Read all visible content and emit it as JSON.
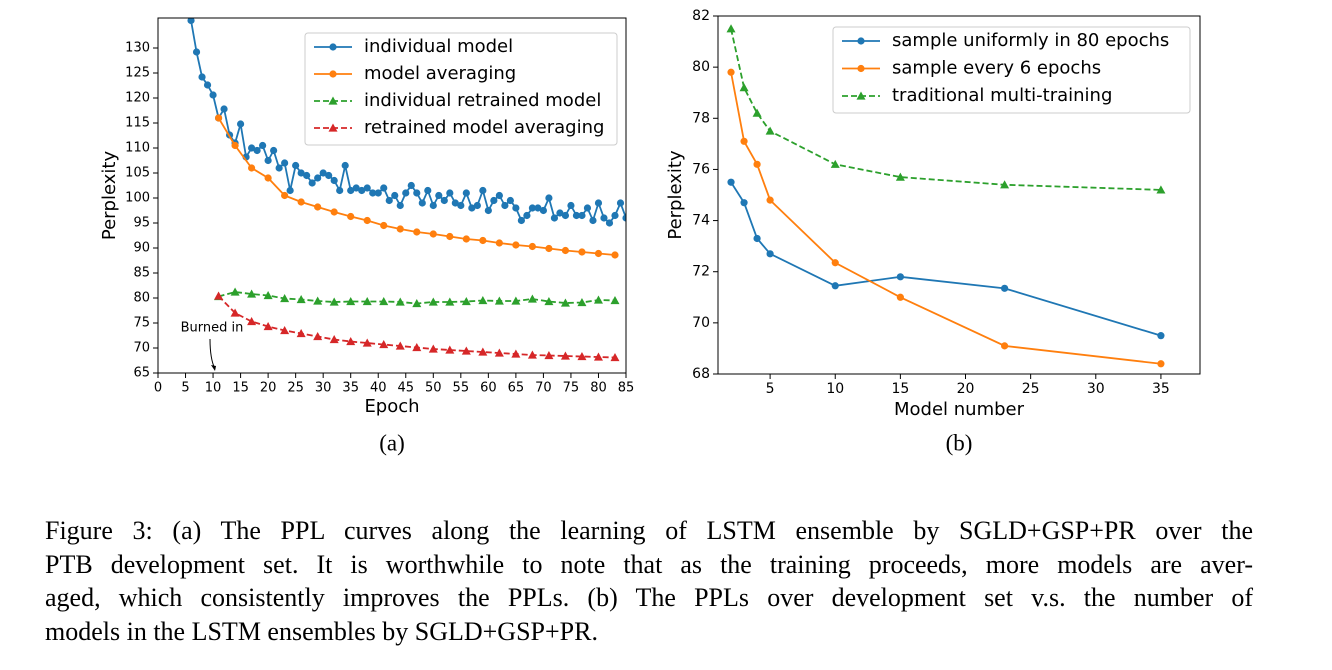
{
  "chart_data": [
    {
      "type": "line",
      "caption": "(a)",
      "xlabel": "Epoch",
      "ylabel": "Perplexity",
      "xlim": [
        0,
        85
      ],
      "ylim": [
        65,
        136
      ],
      "xticks": [
        0,
        5,
        10,
        15,
        20,
        25,
        30,
        35,
        40,
        45,
        50,
        55,
        60,
        65,
        70,
        75,
        80,
        85
      ],
      "yticks": [
        65,
        70,
        75,
        80,
        85,
        90,
        95,
        100,
        105,
        110,
        115,
        120,
        125,
        130
      ],
      "legend": "upper right",
      "annotation": "Burned in",
      "series": [
        {
          "name": "individual model",
          "color": "#1f77b4",
          "marker": "circle",
          "dashed": false,
          "x": [
            6,
            7,
            8,
            9,
            10,
            11,
            12,
            13,
            14,
            15,
            16,
            17,
            18,
            19,
            20,
            21,
            22,
            23,
            24,
            25,
            26,
            27,
            28,
            29,
            30,
            31,
            32,
            33,
            34,
            35,
            36,
            37,
            38,
            39,
            40,
            41,
            42,
            43,
            44,
            45,
            46,
            47,
            48,
            49,
            50,
            51,
            52,
            53,
            54,
            55,
            56,
            57,
            58,
            59,
            60,
            61,
            62,
            63,
            64,
            65,
            66,
            67,
            68,
            69,
            70,
            71,
            72,
            73,
            74,
            75,
            76,
            77,
            78,
            79,
            80,
            81,
            82,
            83,
            84,
            85
          ],
          "values": [
            135.5,
            129.2,
            124.2,
            122.6,
            120.6,
            116,
            117.8,
            112.6,
            111,
            114.8,
            108.2,
            110,
            109.5,
            110.5,
            107.5,
            109.5,
            106,
            107,
            101.5,
            106.5,
            105,
            104.5,
            103,
            104,
            105,
            104.5,
            103.5,
            101.5,
            106.5,
            101.5,
            102,
            101.5,
            102,
            101,
            101,
            102,
            99.5,
            100.5,
            98.5,
            101,
            102.5,
            101,
            99,
            101.5,
            98.5,
            100.5,
            99.5,
            101,
            99,
            98.5,
            101,
            98,
            98.5,
            101.5,
            97.5,
            99.5,
            100.5,
            98.5,
            99.5,
            98,
            95.5,
            96.5,
            98,
            98,
            97.5,
            100,
            96,
            97,
            96.5,
            98.5,
            96.5,
            96.5,
            98,
            95.5,
            99,
            96,
            95,
            96.5,
            99,
            96
          ]
        },
        {
          "name": "model averaging",
          "color": "#ff7f0e",
          "marker": "circle",
          "dashed": false,
          "x": [
            11,
            14,
            17,
            20,
            23,
            26,
            29,
            32,
            35,
            38,
            41,
            44,
            47,
            50,
            53,
            56,
            59,
            62,
            65,
            68,
            71,
            74,
            77,
            80,
            83
          ],
          "values": [
            116,
            110.5,
            106,
            104,
            100.5,
            99.2,
            98.2,
            97.2,
            96.3,
            95.5,
            94.5,
            93.8,
            93.2,
            92.8,
            92.3,
            91.8,
            91.5,
            91,
            90.6,
            90.3,
            89.9,
            89.5,
            89.2,
            88.9,
            88.6
          ]
        },
        {
          "name": "individual retrained model",
          "color": "#2ca02c",
          "marker": "triangle",
          "dashed": true,
          "x": [
            11,
            14,
            17,
            20,
            23,
            26,
            29,
            32,
            35,
            38,
            41,
            44,
            47,
            50,
            53,
            56,
            59,
            62,
            65,
            68,
            71,
            74,
            77,
            80,
            83
          ],
          "values": [
            80.3,
            81.2,
            80.8,
            80.5,
            79.9,
            79.7,
            79.4,
            79.2,
            79.3,
            79.3,
            79.3,
            79.2,
            78.9,
            79.2,
            79.2,
            79.3,
            79.5,
            79.4,
            79.4,
            79.8,
            79.3,
            79,
            79.1,
            79.6,
            79.5
          ]
        },
        {
          "name": "retrained model averaging",
          "color": "#d62728",
          "marker": "triangle",
          "dashed": true,
          "x": [
            11,
            14,
            17,
            20,
            23,
            26,
            29,
            32,
            35,
            38,
            41,
            44,
            47,
            50,
            53,
            56,
            59,
            62,
            65,
            68,
            71,
            74,
            77,
            80,
            83
          ],
          "values": [
            80.4,
            77,
            75.3,
            74.3,
            73.5,
            72.9,
            72.3,
            71.7,
            71.3,
            71,
            70.7,
            70.4,
            70.1,
            69.8,
            69.6,
            69.4,
            69.2,
            69,
            68.8,
            68.6,
            68.5,
            68.4,
            68.3,
            68.2,
            68.1
          ]
        }
      ]
    },
    {
      "type": "line",
      "caption": "(b)",
      "xlabel": "Model number",
      "ylabel": "Perplexity",
      "xlim": [
        1,
        38
      ],
      "ylim": [
        68,
        82
      ],
      "xticks": [
        5,
        10,
        15,
        20,
        25,
        30,
        35
      ],
      "yticks": [
        68,
        70,
        72,
        74,
        76,
        78,
        80,
        82
      ],
      "legend": "upper right",
      "series": [
        {
          "name": "sample uniformly in 80 epochs",
          "color": "#1f77b4",
          "marker": "circle",
          "dashed": false,
          "x": [
            2,
            3,
            4,
            5,
            10,
            15,
            23,
            35
          ],
          "values": [
            75.5,
            74.7,
            73.3,
            72.7,
            71.45,
            71.8,
            71.35,
            69.5
          ]
        },
        {
          "name": "sample every 6 epochs",
          "color": "#ff7f0e",
          "marker": "circle",
          "dashed": false,
          "x": [
            2,
            3,
            4,
            5,
            10,
            15,
            23,
            35
          ],
          "values": [
            79.8,
            77.1,
            76.2,
            74.8,
            72.35,
            71,
            69.1,
            68.4
          ]
        },
        {
          "name": "traditional multi-training",
          "color": "#2ca02c",
          "marker": "triangle",
          "dashed": true,
          "x": [
            2,
            3,
            4,
            5,
            10,
            15,
            23,
            35
          ],
          "values": [
            81.5,
            79.2,
            78.2,
            77.5,
            76.2,
            75.7,
            75.4,
            75.2
          ]
        }
      ]
    }
  ],
  "caption": {
    "lines": [
      "Figure 3: (a) The PPL curves along the learning of LSTM ensemble by SGLD+GSP+PR over the",
      "PTB development set. It is worthwhile to note that as the training proceeds, more models are aver-",
      "aged, which consistently improves the PPLs. (b) The PPLs over development set v.s. the number of",
      "models in the LSTM ensembles by SGLD+GSP+PR."
    ]
  }
}
